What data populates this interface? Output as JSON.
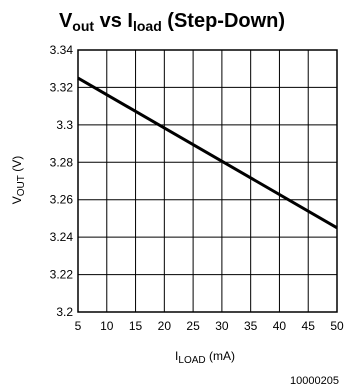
{
  "chart_data": {
    "type": "line",
    "title": {
      "v": "V",
      "out_sub": "out",
      "vs": " vs I",
      "load_sub": "load",
      "rest": " (Step-Down)"
    },
    "xlabel": {
      "i": "I",
      "load_sub": "LOAD",
      "unit": " (mA)"
    },
    "ylabel": {
      "v": "V",
      "out_sub": "OUT",
      "unit": " (V)"
    },
    "xlim": [
      5,
      50
    ],
    "ylim": [
      3.2,
      3.34
    ],
    "x_ticks": [
      "5",
      "10",
      "15",
      "20",
      "25",
      "30",
      "35",
      "40",
      "45",
      "50"
    ],
    "y_ticks": [
      "3.2",
      "3.22",
      "3.24",
      "3.26",
      "3.28",
      "3.3",
      "3.32",
      "3.34"
    ],
    "grid": true,
    "series": [
      {
        "x": [
          5,
          50
        ],
        "y": [
          3.325,
          3.245
        ]
      }
    ]
  },
  "footnote": "10000205"
}
